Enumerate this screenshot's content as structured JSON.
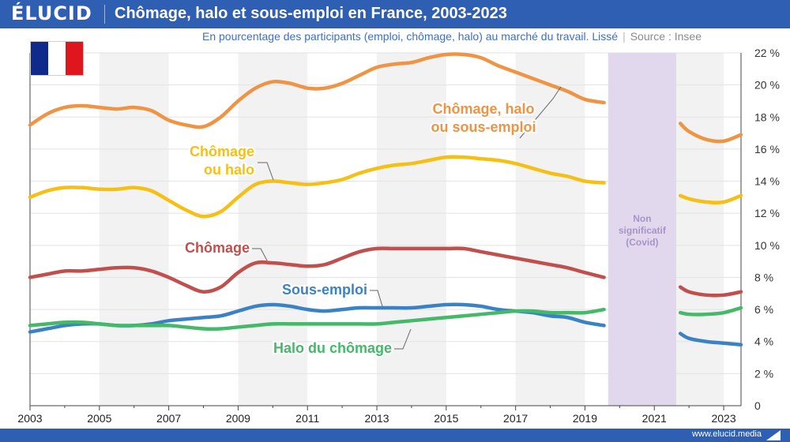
{
  "brand": "ÉLUCID",
  "title": "Chômage, halo et sous-emploi en France, 2003-2023",
  "subtitle": "En pourcentage des participants (emploi, chômage, halo) au marché du travail. Lissé",
  "source": "Source : Insee",
  "footer_url": "www.elucid.media",
  "colors": {
    "brand_blue": "#2f5fb3",
    "chomage_halo_sous_emploi": "#ee9444",
    "chomage_ou_halo": "#f6bf16",
    "chomage": "#c0504d",
    "sous_emploi": "#3b82c4",
    "halo": "#45b86a",
    "covid_band": "#e2d8ee",
    "covid_text": "#a594c6",
    "flag_blue": "#0f2a8a",
    "flag_white": "#ffffff",
    "flag_red": "#e0161e"
  },
  "chart_data": {
    "type": "line",
    "xlim": [
      2003,
      2023.5
    ],
    "ylim": [
      0,
      22
    ],
    "x_ticks": [
      "2003",
      "2005",
      "2007",
      "2009",
      "2011",
      "2013",
      "2015",
      "2017",
      "2019",
      "2021",
      "2023"
    ],
    "y_ticks": [
      "0",
      "2 %",
      "4 %",
      "6 %",
      "8 %",
      "10 %",
      "12 %",
      "14 %",
      "16 %",
      "18 %",
      "20 %",
      "22 %"
    ],
    "grid": true,
    "alternating_year_bands": true,
    "gap": [
      2019.6,
      2021.7
    ],
    "annotation_gap": "Non\nsignificatif\n(Covid)",
    "series": [
      {
        "name": "Chômage, halo\nou sous-emploi",
        "key": "chomage_halo_sous_emploi",
        "segments": [
          [
            [
              2003,
              17.5
            ],
            [
              2003.5,
              18.2
            ],
            [
              2004,
              18.6
            ],
            [
              2004.5,
              18.7
            ],
            [
              2005,
              18.6
            ],
            [
              2005.5,
              18.5
            ],
            [
              2006,
              18.6
            ],
            [
              2006.5,
              18.4
            ],
            [
              2007,
              17.8
            ],
            [
              2007.5,
              17.5
            ],
            [
              2008,
              17.4
            ],
            [
              2008.5,
              18.0
            ],
            [
              2009,
              19.0
            ],
            [
              2009.5,
              19.8
            ],
            [
              2010,
              20.2
            ],
            [
              2010.5,
              20.1
            ],
            [
              2011,
              19.8
            ],
            [
              2011.5,
              19.8
            ],
            [
              2012,
              20.1
            ],
            [
              2012.5,
              20.6
            ],
            [
              2013,
              21.1
            ],
            [
              2013.5,
              21.3
            ],
            [
              2014,
              21.4
            ],
            [
              2014.5,
              21.7
            ],
            [
              2015,
              21.9
            ],
            [
              2015.5,
              21.9
            ],
            [
              2016,
              21.7
            ],
            [
              2016.5,
              21.2
            ],
            [
              2017,
              20.8
            ],
            [
              2017.5,
              20.4
            ],
            [
              2018,
              20.0
            ],
            [
              2018.5,
              19.6
            ],
            [
              2019,
              19.1
            ],
            [
              2019.55,
              18.9
            ]
          ],
          [
            [
              2021.75,
              17.6
            ],
            [
              2022,
              17.1
            ],
            [
              2022.5,
              16.6
            ],
            [
              2023,
              16.5
            ],
            [
              2023.5,
              16.9
            ]
          ]
        ]
      },
      {
        "name": "Chômage\nou halo",
        "key": "chomage_ou_halo",
        "segments": [
          [
            [
              2003,
              13.0
            ],
            [
              2003.5,
              13.4
            ],
            [
              2004,
              13.6
            ],
            [
              2004.5,
              13.6
            ],
            [
              2005,
              13.5
            ],
            [
              2005.5,
              13.5
            ],
            [
              2006,
              13.6
            ],
            [
              2006.5,
              13.4
            ],
            [
              2007,
              12.8
            ],
            [
              2007.5,
              12.2
            ],
            [
              2008,
              11.8
            ],
            [
              2008.5,
              12.1
            ],
            [
              2009,
              13.0
            ],
            [
              2009.5,
              13.8
            ],
            [
              2010,
              14.0
            ],
            [
              2010.5,
              13.9
            ],
            [
              2011,
              13.8
            ],
            [
              2011.5,
              13.9
            ],
            [
              2012,
              14.1
            ],
            [
              2012.5,
              14.5
            ],
            [
              2013,
              14.8
            ],
            [
              2013.5,
              15.0
            ],
            [
              2014,
              15.1
            ],
            [
              2014.5,
              15.3
            ],
            [
              2015,
              15.5
            ],
            [
              2015.5,
              15.5
            ],
            [
              2016,
              15.4
            ],
            [
              2016.5,
              15.3
            ],
            [
              2017,
              15.1
            ],
            [
              2017.5,
              14.8
            ],
            [
              2018,
              14.5
            ],
            [
              2018.5,
              14.3
            ],
            [
              2019,
              14.0
            ],
            [
              2019.55,
              13.9
            ]
          ],
          [
            [
              2021.75,
              13.1
            ],
            [
              2022,
              12.9
            ],
            [
              2022.5,
              12.7
            ],
            [
              2023,
              12.7
            ],
            [
              2023.5,
              13.1
            ]
          ]
        ]
      },
      {
        "name": "Chômage",
        "key": "chomage",
        "segments": [
          [
            [
              2003,
              8.0
            ],
            [
              2003.5,
              8.2
            ],
            [
              2004,
              8.4
            ],
            [
              2004.5,
              8.4
            ],
            [
              2005,
              8.5
            ],
            [
              2005.5,
              8.6
            ],
            [
              2006,
              8.6
            ],
            [
              2006.5,
              8.4
            ],
            [
              2007,
              8.0
            ],
            [
              2007.5,
              7.5
            ],
            [
              2008,
              7.1
            ],
            [
              2008.5,
              7.4
            ],
            [
              2009,
              8.3
            ],
            [
              2009.5,
              8.9
            ],
            [
              2010,
              8.9
            ],
            [
              2010.5,
              8.8
            ],
            [
              2011,
              8.7
            ],
            [
              2011.5,
              8.8
            ],
            [
              2012,
              9.2
            ],
            [
              2012.5,
              9.6
            ],
            [
              2013,
              9.8
            ],
            [
              2013.5,
              9.8
            ],
            [
              2014,
              9.8
            ],
            [
              2014.5,
              9.8
            ],
            [
              2015,
              9.8
            ],
            [
              2015.5,
              9.8
            ],
            [
              2016,
              9.6
            ],
            [
              2016.5,
              9.4
            ],
            [
              2017,
              9.2
            ],
            [
              2017.5,
              9.0
            ],
            [
              2018,
              8.8
            ],
            [
              2018.5,
              8.6
            ],
            [
              2019,
              8.3
            ],
            [
              2019.55,
              8.0
            ]
          ],
          [
            [
              2021.75,
              7.4
            ],
            [
              2022,
              7.1
            ],
            [
              2022.5,
              6.9
            ],
            [
              2023,
              6.9
            ],
            [
              2023.5,
              7.1
            ]
          ]
        ]
      },
      {
        "name": "Sous-emploi",
        "key": "sous_emploi",
        "segments": [
          [
            [
              2003,
              4.6
            ],
            [
              2003.5,
              4.8
            ],
            [
              2004,
              5.0
            ],
            [
              2004.5,
              5.1
            ],
            [
              2005,
              5.1
            ],
            [
              2005.5,
              5.0
            ],
            [
              2006,
              5.0
            ],
            [
              2006.5,
              5.1
            ],
            [
              2007,
              5.3
            ],
            [
              2007.5,
              5.4
            ],
            [
              2008,
              5.5
            ],
            [
              2008.5,
              5.6
            ],
            [
              2009,
              5.9
            ],
            [
              2009.5,
              6.2
            ],
            [
              2010,
              6.3
            ],
            [
              2010.5,
              6.2
            ],
            [
              2011,
              6.0
            ],
            [
              2011.5,
              5.9
            ],
            [
              2012,
              6.0
            ],
            [
              2012.5,
              6.1
            ],
            [
              2013,
              6.1
            ],
            [
              2013.5,
              6.1
            ],
            [
              2014,
              6.1
            ],
            [
              2014.5,
              6.2
            ],
            [
              2015,
              6.3
            ],
            [
              2015.5,
              6.3
            ],
            [
              2016,
              6.2
            ],
            [
              2016.5,
              6.0
            ],
            [
              2017,
              5.9
            ],
            [
              2017.5,
              5.8
            ],
            [
              2018,
              5.6
            ],
            [
              2018.5,
              5.5
            ],
            [
              2019,
              5.2
            ],
            [
              2019.55,
              5.0
            ]
          ],
          [
            [
              2021.75,
              4.5
            ],
            [
              2022,
              4.2
            ],
            [
              2022.5,
              4.0
            ],
            [
              2023,
              3.9
            ],
            [
              2023.5,
              3.8
            ]
          ]
        ]
      },
      {
        "name": "Halo du chômage",
        "key": "halo",
        "segments": [
          [
            [
              2003,
              5.0
            ],
            [
              2003.5,
              5.1
            ],
            [
              2004,
              5.2
            ],
            [
              2004.5,
              5.2
            ],
            [
              2005,
              5.1
            ],
            [
              2005.5,
              5.0
            ],
            [
              2006,
              5.0
            ],
            [
              2006.5,
              5.0
            ],
            [
              2007,
              5.0
            ],
            [
              2007.5,
              4.9
            ],
            [
              2008,
              4.8
            ],
            [
              2008.5,
              4.8
            ],
            [
              2009,
              4.9
            ],
            [
              2009.5,
              5.0
            ],
            [
              2010,
              5.1
            ],
            [
              2010.5,
              5.1
            ],
            [
              2011,
              5.1
            ],
            [
              2011.5,
              5.1
            ],
            [
              2012,
              5.1
            ],
            [
              2012.5,
              5.1
            ],
            [
              2013,
              5.1
            ],
            [
              2013.5,
              5.2
            ],
            [
              2014,
              5.3
            ],
            [
              2014.5,
              5.4
            ],
            [
              2015,
              5.5
            ],
            [
              2015.5,
              5.6
            ],
            [
              2016,
              5.7
            ],
            [
              2016.5,
              5.8
            ],
            [
              2017,
              5.9
            ],
            [
              2017.5,
              5.9
            ],
            [
              2018,
              5.8
            ],
            [
              2018.5,
              5.8
            ],
            [
              2019,
              5.8
            ],
            [
              2019.55,
              6.0
            ]
          ],
          [
            [
              2021.75,
              5.8
            ],
            [
              2022,
              5.7
            ],
            [
              2022.5,
              5.7
            ],
            [
              2023,
              5.8
            ],
            [
              2023.5,
              6.1
            ]
          ]
        ]
      }
    ]
  }
}
